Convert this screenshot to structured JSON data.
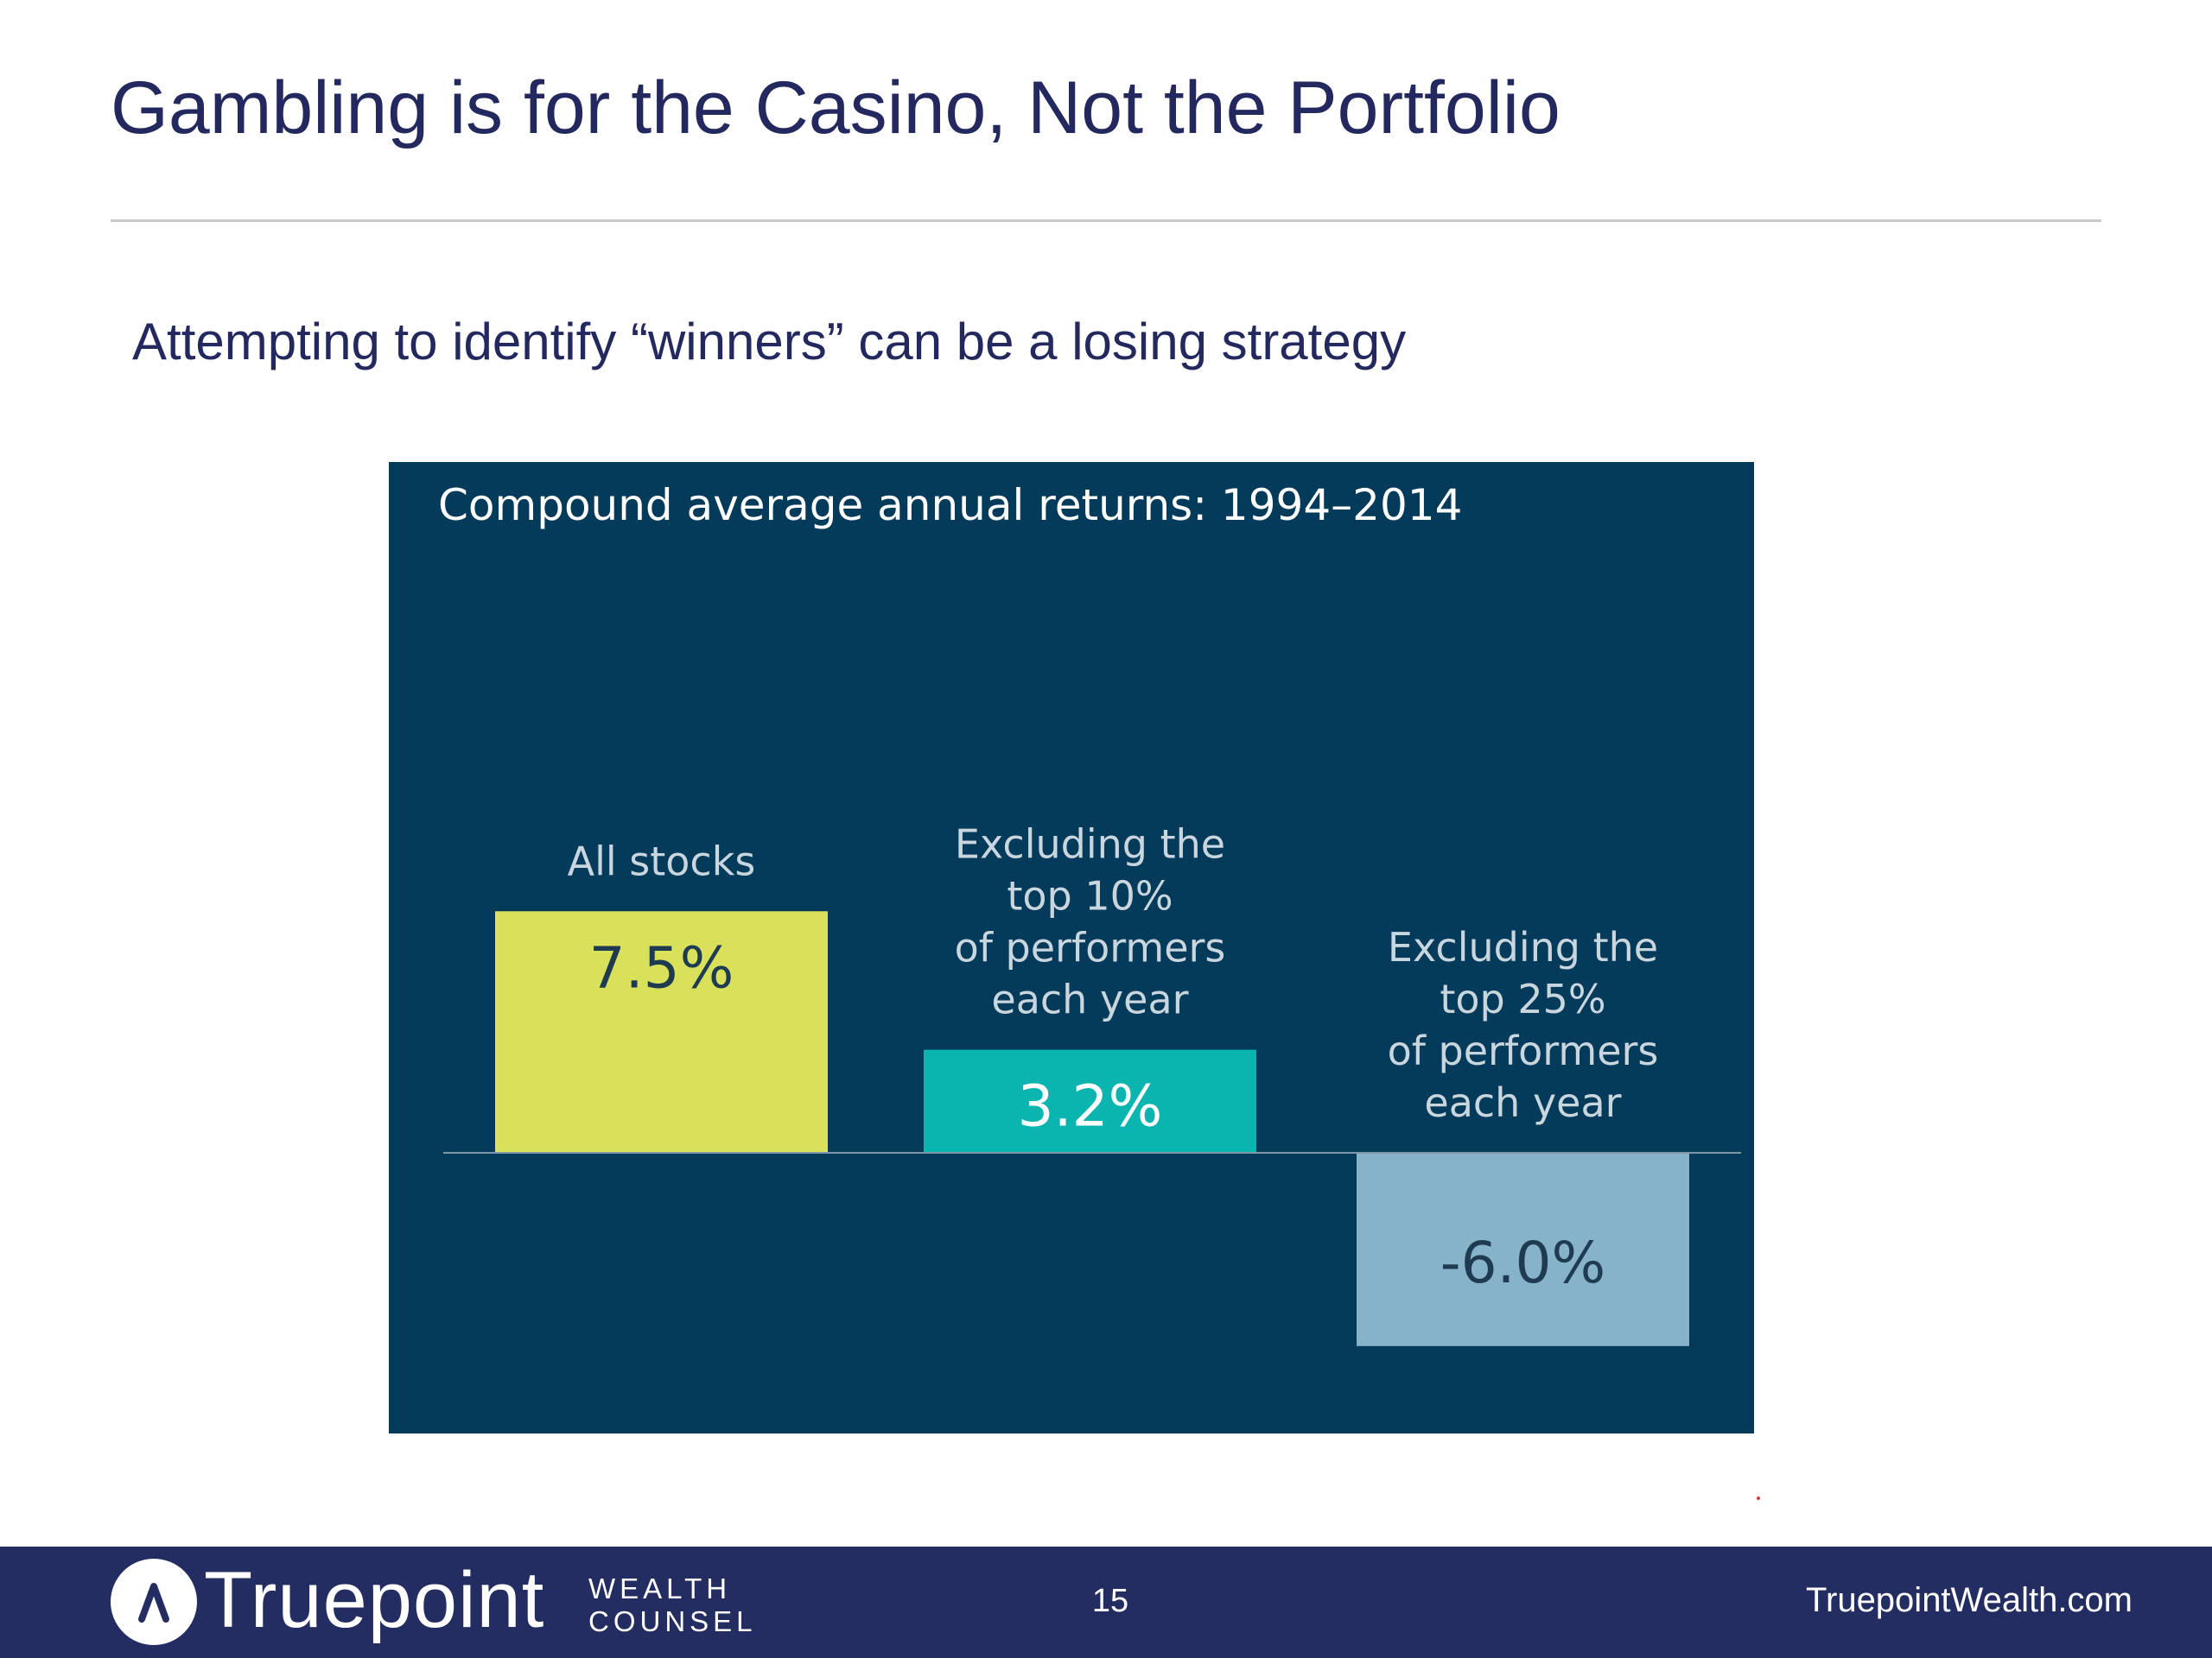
{
  "slide": {
    "title": "Gambling is for the Casino, Not the Portfolio",
    "subtitle": "Attempting to identify “winners” can be a losing strategy"
  },
  "chart_data": {
    "type": "bar",
    "title": "Compound average annual returns: 1994–2014",
    "xlabel": "",
    "ylabel": "",
    "ylim": [
      -6.0,
      7.5
    ],
    "grid": false,
    "legend": "none",
    "categories": [
      [
        "All stocks"
      ],
      [
        "Excluding the",
        "top 10%",
        "of performers",
        "each year"
      ],
      [
        "Excluding the",
        "top 25%",
        "of performers",
        "each year"
      ]
    ],
    "values": [
      7.5,
      3.2,
      -6.0
    ],
    "value_labels": [
      "7.5%",
      "3.2%",
      "-6.0%"
    ],
    "bar_colors": [
      "#d9e05a",
      "#0ab5b0",
      "#86b3c9"
    ],
    "value_label_colors": [
      "#1f3b52",
      "#ffffff",
      "#1f3b52"
    ],
    "background_color": "#043a5a"
  },
  "footer": {
    "brand": "Truepoint",
    "brand_sub_1": "WEALTH",
    "brand_sub_2": "COUNSEL",
    "page_number": "15",
    "website": "TruepointWealth.com"
  },
  "colors": {
    "title": "#23285e",
    "footer_bg": "#242d62"
  }
}
